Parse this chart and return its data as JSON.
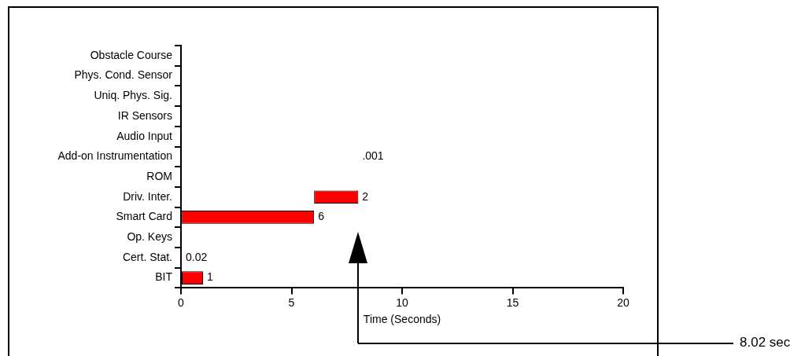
{
  "chart_data": {
    "type": "bar",
    "orientation": "horizontal",
    "xlabel": "Time (Seconds)",
    "categories": [
      "Obstacle Course",
      "Phys. Cond. Sensor",
      "Uniq. Phys. Sig.",
      "IR Sensors",
      "Audio Input",
      "Add-on Instrumentation",
      "ROM",
      "Driv. Inter.",
      "Smart Card",
      "Op. Keys",
      "Cert. Stat.",
      "BIT"
    ],
    "values": [
      null,
      null,
      null,
      null,
      null,
      0.001,
      null,
      2,
      6,
      null,
      0.02,
      1
    ],
    "base": [
      null,
      null,
      null,
      null,
      null,
      8.02,
      null,
      6.02,
      0.02,
      null,
      0,
      0
    ],
    "value_labels": [
      null,
      null,
      null,
      null,
      null,
      ".001",
      null,
      "2",
      "6",
      null,
      "0.02",
      "1"
    ],
    "color": "#ff0000",
    "xlim": [
      0,
      20
    ],
    "xticks": [
      0,
      5,
      10,
      15,
      20
    ],
    "grid": false,
    "legend": false,
    "annotations": [
      "8.02 sec"
    ]
  }
}
